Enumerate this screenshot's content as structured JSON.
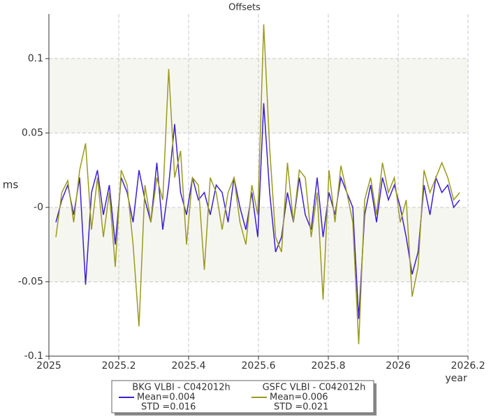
{
  "chart_data": {
    "type": "line",
    "title": "Offsets",
    "xlabel": "year",
    "ylabel": "ms",
    "xlim": [
      2025,
      2026.2
    ],
    "xticks": [
      2025,
      2025.2,
      2025.4,
      2025.6,
      2025.8,
      2026,
      2026.2
    ],
    "ylim": [
      -0.1,
      0.13
    ],
    "yticks": [
      -0.1,
      -0.05,
      {
        "value": 0,
        "label": "-0"
      },
      0.05,
      0.1
    ],
    "grid": true,
    "legend": "bottom",
    "x": [
      2025.02,
      2025.037,
      2025.054,
      2025.071,
      2025.088,
      2025.105,
      2025.122,
      2025.139,
      2025.156,
      2025.173,
      2025.19,
      2025.207,
      2025.224,
      2025.241,
      2025.258,
      2025.275,
      2025.292,
      2025.309,
      2025.326,
      2025.343,
      2025.36,
      2025.377,
      2025.394,
      2025.411,
      2025.428,
      2025.445,
      2025.462,
      2025.479,
      2025.496,
      2025.513,
      2025.53,
      2025.547,
      2025.564,
      2025.581,
      2025.598,
      2025.615,
      2025.632,
      2025.649,
      2025.666,
      2025.683,
      2025.7,
      2025.717,
      2025.734,
      2025.751,
      2025.768,
      2025.785,
      2025.802,
      2025.819,
      2025.836,
      2025.853,
      2025.87,
      2025.887,
      2025.904,
      2025.921,
      2025.938,
      2025.955,
      2025.972,
      2025.989,
      2026.006,
      2026.023,
      2026.04,
      2026.057,
      2026.074,
      2026.091,
      2026.108,
      2026.125,
      2026.142,
      2026.159,
      2026.176
    ],
    "series": [
      {
        "name": "BKG VLBI - C042012h",
        "color": "#3a1fd6",
        "legend_text": [
          "Mean=0.004",
          "STD =0.016"
        ],
        "values": [
          -0.01,
          0.005,
          0.015,
          -0.005,
          0.02,
          -0.052,
          0.01,
          0.025,
          -0.005,
          0.015,
          -0.025,
          0.02,
          0.01,
          -0.01,
          0.025,
          0.005,
          -0.01,
          0.03,
          -0.015,
          0.015,
          0.056,
          0.01,
          -0.005,
          0.02,
          0.005,
          0.01,
          -0.005,
          0.015,
          0.01,
          -0.01,
          0.02,
          0.0,
          -0.015,
          0.01,
          -0.02,
          0.07,
          0.01,
          -0.03,
          -0.02,
          0.01,
          -0.01,
          0.02,
          -0.005,
          -0.015,
          0.02,
          -0.02,
          0.01,
          -0.005,
          0.02,
          0.01,
          0.0,
          -0.075,
          -0.005,
          0.015,
          -0.01,
          0.02,
          0.005,
          0.015,
          0.0,
          -0.02,
          -0.045,
          -0.03,
          0.015,
          -0.005,
          0.02,
          0.01,
          0.015,
          0.0,
          0.005
        ]
      },
      {
        "name": "GSFC VLBI - C042012h",
        "color": "#9a9a1e",
        "legend_text": [
          "Mean=0.006",
          "STD =0.021"
        ],
        "values": [
          -0.02,
          0.01,
          0.018,
          -0.01,
          0.025,
          0.043,
          -0.015,
          0.02,
          -0.02,
          0.01,
          -0.04,
          0.025,
          0.015,
          -0.025,
          -0.08,
          0.015,
          -0.01,
          0.02,
          0.005,
          0.093,
          0.02,
          0.038,
          -0.025,
          0.02,
          0.015,
          -0.042,
          0.02,
          0.01,
          -0.015,
          0.01,
          0.02,
          -0.01,
          -0.025,
          0.015,
          -0.005,
          0.123,
          0.04,
          -0.02,
          -0.03,
          0.03,
          -0.01,
          0.025,
          0.02,
          -0.02,
          0.01,
          -0.062,
          0.025,
          -0.01,
          0.028,
          0.01,
          -0.01,
          -0.092,
          0.005,
          0.02,
          -0.005,
          0.03,
          0.01,
          0.02,
          -0.01,
          0.005,
          -0.06,
          -0.04,
          0.025,
          0.01,
          0.02,
          0.03,
          0.02,
          0.005,
          0.01
        ]
      }
    ]
  }
}
